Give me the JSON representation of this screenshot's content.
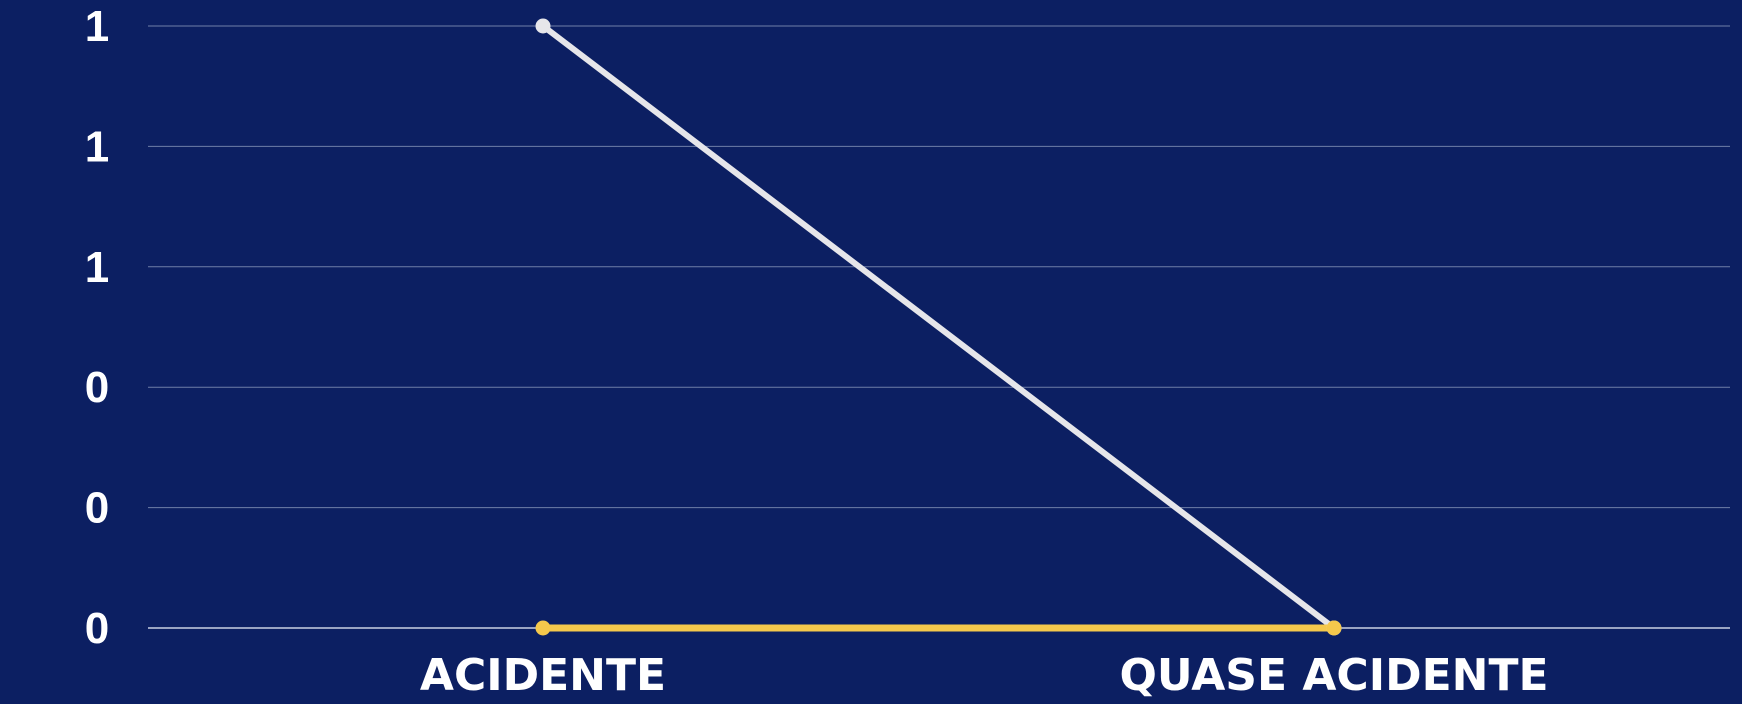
{
  "chart_data": {
    "type": "line",
    "categories": [
      "ACIDENTE",
      "QUASE ACIDENTE"
    ],
    "series": [
      {
        "values": [
          1,
          0
        ],
        "color": "#e6e6ea"
      },
      {
        "values": [
          0,
          0
        ],
        "color": "#f5c84c"
      }
    ],
    "ytick_labels": [
      "0",
      "0",
      "0",
      "1",
      "1",
      "1"
    ],
    "ylim": [
      0,
      1
    ],
    "grid": true,
    "legend": "none",
    "colors": {
      "background": "#0c1f62",
      "grid": "#6f7fa8",
      "text": "#ffffff"
    }
  }
}
